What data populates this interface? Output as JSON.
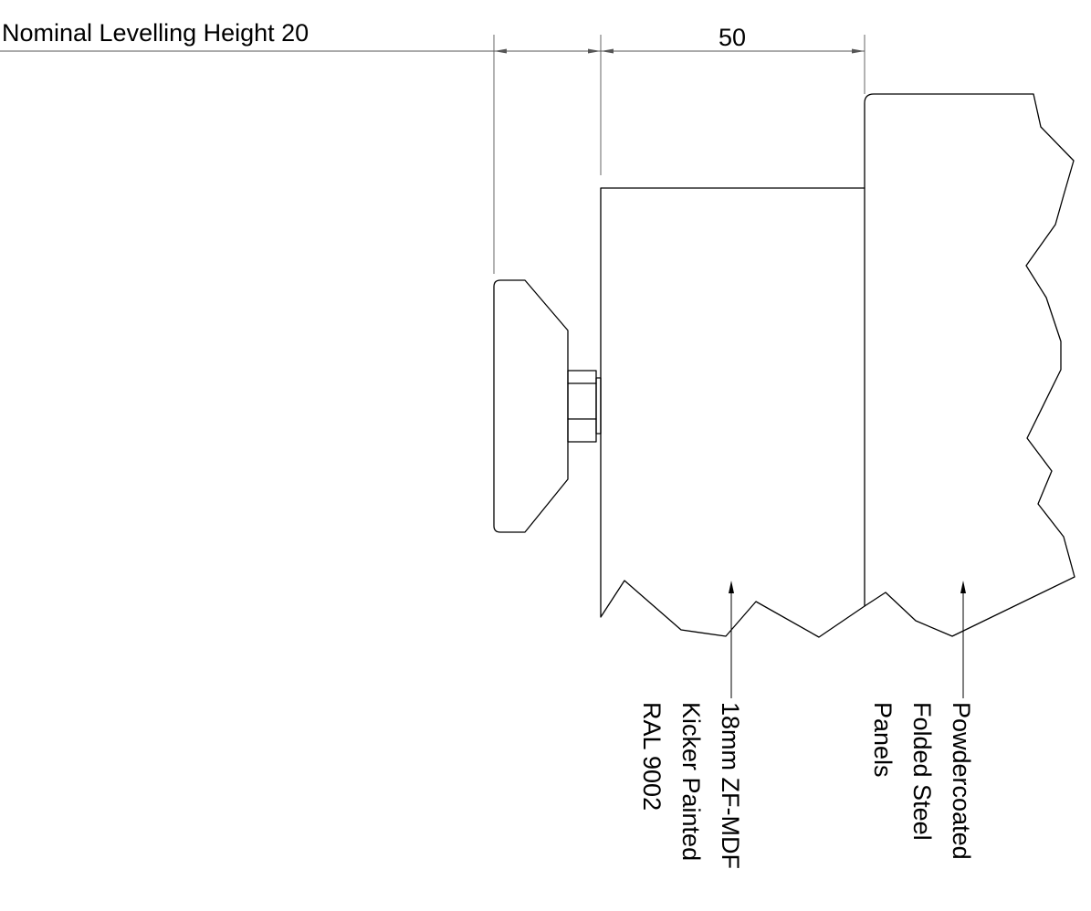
{
  "drawing": {
    "levelling_label": "Nominal Levelling Height 20",
    "dimension_label": "50",
    "kicker_label": {
      "line1": "18mm ZF-MDF",
      "line2": "Kicker Painted",
      "line3": "RAL 9002"
    },
    "panel_label": {
      "line1": "Powdercoated",
      "line2": "Folded Steel",
      "line3": "Panels"
    }
  }
}
